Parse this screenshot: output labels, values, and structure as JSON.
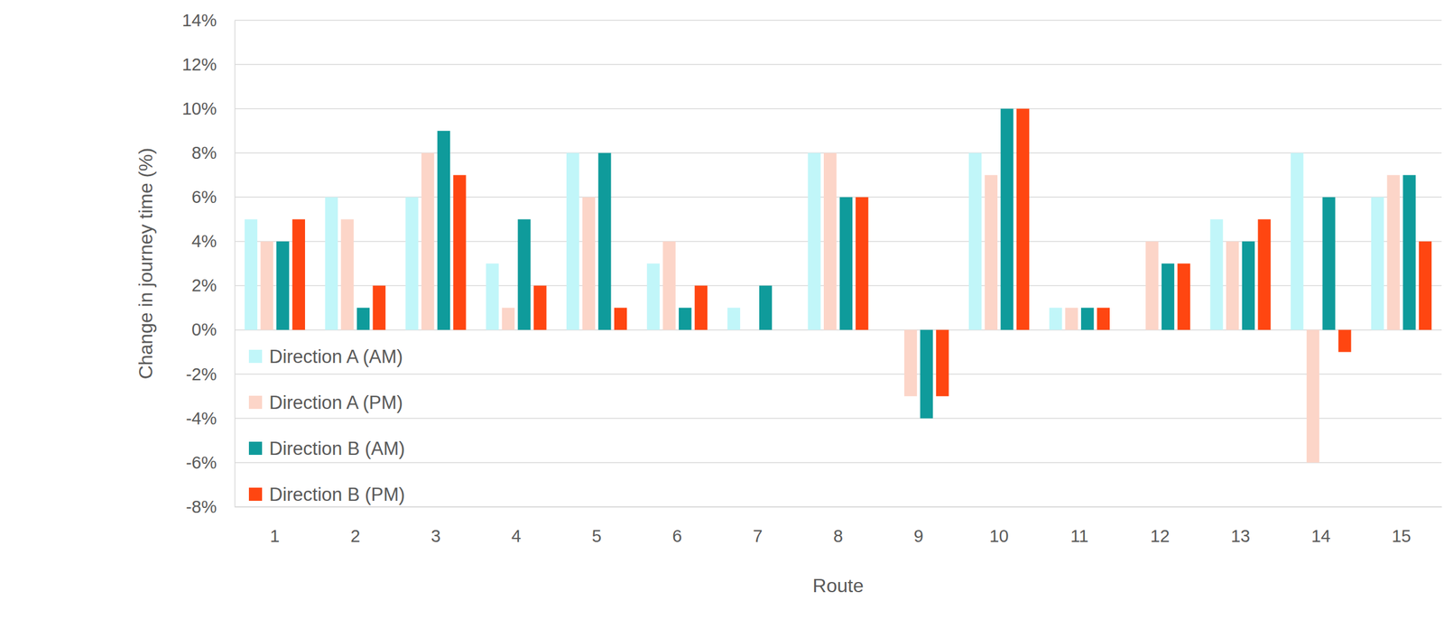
{
  "chart_data": {
    "type": "bar",
    "x_label": "Route",
    "y_label": "Change in journey time (%)",
    "categories": [
      "1",
      "2",
      "3",
      "4",
      "5",
      "6",
      "7",
      "8",
      "9",
      "10",
      "11",
      "12",
      "13",
      "14",
      "15"
    ],
    "series": [
      {
        "name": "Direction A (AM)",
        "color": "#c1f6f9",
        "values": [
          5,
          6,
          6,
          3,
          8,
          3,
          1,
          8,
          0,
          8,
          1,
          0,
          5,
          8,
          6
        ]
      },
      {
        "name": "Direction A (PM)",
        "color": "#fcd5c8",
        "values": [
          4,
          5,
          8,
          1,
          6,
          4,
          0,
          8,
          -3,
          7,
          1,
          4,
          4,
          -6,
          7
        ]
      },
      {
        "name": "Direction B (AM)",
        "color": "#0f9b9b",
        "values": [
          4,
          1,
          9,
          5,
          8,
          1,
          2,
          6,
          -4,
          10,
          1,
          3,
          4,
          6,
          7
        ]
      },
      {
        "name": "Direction B (PM)",
        "color": "#ff4611",
        "values": [
          5,
          2,
          7,
          2,
          1,
          2,
          0,
          6,
          -3,
          10,
          1,
          3,
          5,
          -1,
          4
        ]
      }
    ],
    "ylim": [
      -8,
      14
    ],
    "yticks": [
      {
        "value": -8,
        "label": "-8%"
      },
      {
        "value": -6,
        "label": "-6%"
      },
      {
        "value": -4,
        "label": "-4%"
      },
      {
        "value": -2,
        "label": "-2%"
      },
      {
        "value": 0,
        "label": "0%"
      },
      {
        "value": 2,
        "label": "2%"
      },
      {
        "value": 4,
        "label": "4%"
      },
      {
        "value": 6,
        "label": "6%"
      },
      {
        "value": 8,
        "label": "8%"
      },
      {
        "value": 10,
        "label": "10%"
      },
      {
        "value": 12,
        "label": "12%"
      },
      {
        "value": 14,
        "label": "14%"
      }
    ],
    "grid": true,
    "legend": "lower left"
  }
}
